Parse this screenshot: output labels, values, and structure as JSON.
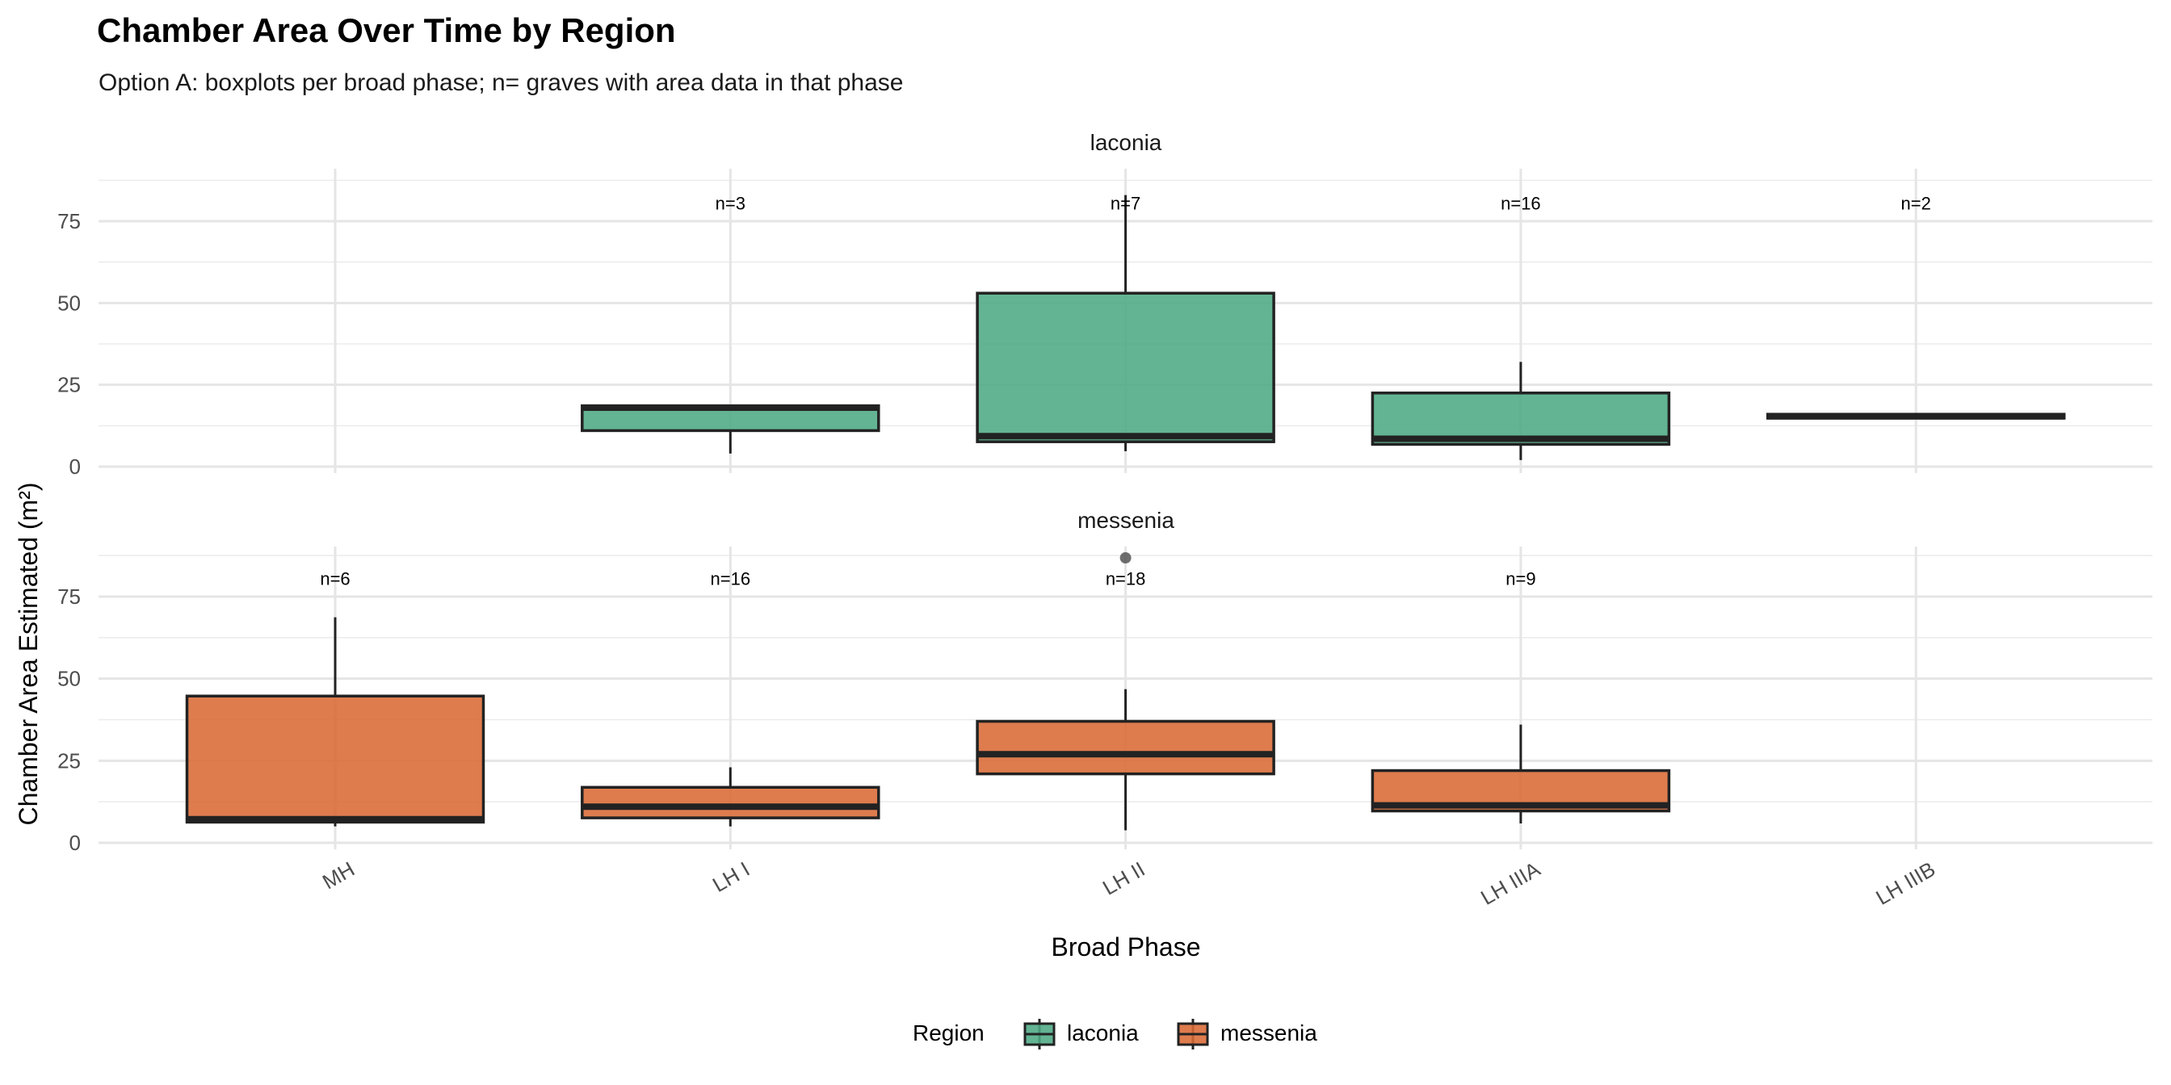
{
  "chart_data": {
    "type": "boxplot",
    "title": "Chamber Area Over Time by Region",
    "subtitle": "Option A: boxplots per broad phase; n= graves with area data in that phase",
    "xlabel": "Broad Phase",
    "ylabel": "Chamber Area Estimated (m²)",
    "categories": [
      "MH",
      "LH I",
      "LH II",
      "LH IIIA",
      "LH IIIB"
    ],
    "yticks": [
      0,
      25,
      50,
      75
    ],
    "ylim": [
      0,
      91
    ],
    "grid": true,
    "legend": {
      "title": "Region",
      "position": "bottom",
      "entries": [
        "laconia",
        "messenia"
      ]
    },
    "colors": {
      "laconia": "#4DAA84",
      "messenia": "#DA6A35"
    },
    "facets": [
      {
        "name": "laconia",
        "boxes": [
          {
            "category": "LH I",
            "n_label": "n=3",
            "min": 4,
            "q1": 11,
            "median": 18,
            "q3": 18.6,
            "max": 18.6,
            "outliers": []
          },
          {
            "category": "LH II",
            "n_label": "n=7",
            "min": 4.7,
            "q1": 7.6,
            "median": 9.3,
            "q3": 53,
            "max": 83,
            "outliers": []
          },
          {
            "category": "LH IIIA",
            "n_label": "n=16",
            "min": 2,
            "q1": 6.8,
            "median": 8.5,
            "q3": 22.5,
            "max": 32,
            "outliers": []
          },
          {
            "category": "LH IIIB",
            "n_label": "n=2",
            "min": 14.8,
            "q1": 14.8,
            "median": 15.4,
            "q3": 16,
            "max": 16,
            "outliers": []
          }
        ]
      },
      {
        "name": "messenia",
        "boxes": [
          {
            "category": "MH",
            "n_label": "n=6",
            "min": 5,
            "q1": 6.3,
            "median": 7.2,
            "q3": 44.7,
            "max": 68.7,
            "outliers": []
          },
          {
            "category": "LH I",
            "n_label": "n=16",
            "min": 5,
            "q1": 7.6,
            "median": 11,
            "q3": 16.9,
            "max": 23,
            "outliers": []
          },
          {
            "category": "LH II",
            "n_label": "n=18",
            "min": 3.8,
            "q1": 21,
            "median": 27,
            "q3": 37,
            "max": 46.8,
            "outliers": [
              86.8
            ]
          },
          {
            "category": "LH IIIA",
            "n_label": "n=9",
            "min": 5.9,
            "q1": 9.7,
            "median": 11.4,
            "q3": 22,
            "max": 36,
            "outliers": []
          }
        ]
      }
    ]
  }
}
